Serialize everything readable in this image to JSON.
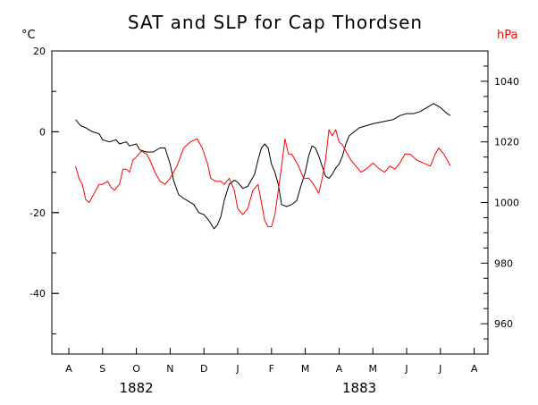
{
  "chart_data": {
    "type": "line",
    "title": "SAT and SLP for Cap Thordsen",
    "left_axis": {
      "unit": "°C",
      "ylim": [
        -55,
        20
      ],
      "ticks": [
        20,
        0,
        -20,
        -40
      ]
    },
    "right_axis": {
      "unit": "hPa",
      "ylim": [
        950,
        1050
      ],
      "ticks": [
        1040,
        1020,
        1000,
        980,
        960
      ]
    },
    "x_months": [
      "A",
      "S",
      "O",
      "N",
      "D",
      "J",
      "F",
      "M",
      "A",
      "M",
      "J",
      "J",
      "A"
    ],
    "years": [
      {
        "label": "1882",
        "month_index": 2
      },
      {
        "label": "1883",
        "month_index": 8.6
      }
    ],
    "colors": {
      "sat": "#000000",
      "slp": "#ff0000",
      "right_axis_label": "#ff0000"
    },
    "series": [
      {
        "axis": "left",
        "color": "#000000",
        "points": [
          [
            0.2,
            3
          ],
          [
            0.35,
            1.5
          ],
          [
            0.5,
            1
          ],
          [
            0.7,
            0
          ],
          [
            0.9,
            -0.5
          ],
          [
            1.0,
            -2
          ],
          [
            1.2,
            -2.5
          ],
          [
            1.4,
            -2
          ],
          [
            1.5,
            -3
          ],
          [
            1.7,
            -2.5
          ],
          [
            1.8,
            -3.5
          ],
          [
            2.0,
            -3
          ],
          [
            2.1,
            -4.5
          ],
          [
            2.3,
            -5
          ],
          [
            2.5,
            -5
          ],
          [
            2.7,
            -4
          ],
          [
            2.85,
            -4
          ],
          [
            3.0,
            -8
          ],
          [
            3.1,
            -12
          ],
          [
            3.25,
            -15.5
          ],
          [
            3.4,
            -16.5
          ],
          [
            3.5,
            -17
          ],
          [
            3.7,
            -18
          ],
          [
            3.85,
            -20
          ],
          [
            4.0,
            -20.5
          ],
          [
            4.15,
            -22
          ],
          [
            4.3,
            -24
          ],
          [
            4.4,
            -23
          ],
          [
            4.5,
            -21
          ],
          [
            4.6,
            -17
          ],
          [
            4.75,
            -13
          ],
          [
            4.9,
            -12
          ],
          [
            5.0,
            -12.5
          ],
          [
            5.15,
            -14
          ],
          [
            5.3,
            -13.5
          ],
          [
            5.5,
            -10.5
          ],
          [
            5.6,
            -7
          ],
          [
            5.7,
            -4
          ],
          [
            5.8,
            -3
          ],
          [
            5.9,
            -4
          ],
          [
            6.0,
            -8
          ],
          [
            6.1,
            -10
          ],
          [
            6.2,
            -13
          ],
          [
            6.3,
            -18
          ],
          [
            6.45,
            -18.5
          ],
          [
            6.6,
            -18
          ],
          [
            6.75,
            -17
          ],
          [
            6.85,
            -14
          ],
          [
            7.0,
            -10
          ],
          [
            7.1,
            -6
          ],
          [
            7.2,
            -3.5
          ],
          [
            7.3,
            -4
          ],
          [
            7.4,
            -6
          ],
          [
            7.5,
            -8.5
          ],
          [
            7.6,
            -11
          ],
          [
            7.7,
            -11.5
          ],
          [
            7.8,
            -10.5
          ],
          [
            7.9,
            -9
          ],
          [
            8.0,
            -8
          ],
          [
            8.1,
            -6
          ],
          [
            8.2,
            -3
          ],
          [
            8.3,
            -1
          ],
          [
            8.45,
            0
          ],
          [
            8.6,
            1
          ],
          [
            8.8,
            1.5
          ],
          [
            9.0,
            2
          ],
          [
            9.3,
            2.5
          ],
          [
            9.6,
            3
          ],
          [
            9.8,
            4
          ],
          [
            10.0,
            4.5
          ],
          [
            10.2,
            4.5
          ],
          [
            10.4,
            5
          ],
          [
            10.6,
            6
          ],
          [
            10.8,
            7
          ],
          [
            11.0,
            6
          ],
          [
            11.2,
            4.5
          ],
          [
            11.3,
            4
          ]
        ]
      },
      {
        "axis": "right",
        "color": "#ff0000",
        "points": [
          [
            0.2,
            1012
          ],
          [
            0.3,
            1008
          ],
          [
            0.4,
            1006
          ],
          [
            0.5,
            1001
          ],
          [
            0.6,
            1000
          ],
          [
            0.7,
            1002
          ],
          [
            0.8,
            1004
          ],
          [
            0.9,
            1006
          ],
          [
            1.0,
            1006
          ],
          [
            1.15,
            1007
          ],
          [
            1.25,
            1005
          ],
          [
            1.35,
            1004
          ],
          [
            1.5,
            1006
          ],
          [
            1.6,
            1011
          ],
          [
            1.7,
            1011
          ],
          [
            1.8,
            1010
          ],
          [
            1.9,
            1014
          ],
          [
            2.0,
            1015
          ],
          [
            2.15,
            1017
          ],
          [
            2.3,
            1016
          ],
          [
            2.4,
            1014
          ],
          [
            2.55,
            1010
          ],
          [
            2.7,
            1007
          ],
          [
            2.85,
            1006
          ],
          [
            3.0,
            1008
          ],
          [
            3.2,
            1012
          ],
          [
            3.4,
            1018
          ],
          [
            3.6,
            1020
          ],
          [
            3.8,
            1021
          ],
          [
            3.95,
            1018
          ],
          [
            4.1,
            1013
          ],
          [
            4.2,
            1008
          ],
          [
            4.35,
            1007
          ],
          [
            4.5,
            1007
          ],
          [
            4.6,
            1006
          ],
          [
            4.75,
            1008
          ],
          [
            4.9,
            1004
          ],
          [
            5.0,
            998
          ],
          [
            5.15,
            996
          ],
          [
            5.3,
            998
          ],
          [
            5.45,
            1004
          ],
          [
            5.6,
            1006
          ],
          [
            5.7,
            1000
          ],
          [
            5.8,
            994
          ],
          [
            5.9,
            992
          ],
          [
            6.0,
            992
          ],
          [
            6.1,
            996
          ],
          [
            6.2,
            1004
          ],
          [
            6.3,
            1012
          ],
          [
            6.4,
            1021
          ],
          [
            6.5,
            1016
          ],
          [
            6.6,
            1016
          ],
          [
            6.7,
            1014
          ],
          [
            6.8,
            1012
          ],
          [
            6.95,
            1008
          ],
          [
            7.1,
            1008
          ],
          [
            7.25,
            1006
          ],
          [
            7.4,
            1003
          ],
          [
            7.5,
            1008
          ],
          [
            7.6,
            1014
          ],
          [
            7.7,
            1024
          ],
          [
            7.8,
            1022
          ],
          [
            7.9,
            1024
          ],
          [
            8.0,
            1020
          ],
          [
            8.1,
            1019
          ],
          [
            8.25,
            1016
          ],
          [
            8.35,
            1014
          ],
          [
            8.5,
            1012
          ],
          [
            8.65,
            1010
          ],
          [
            8.8,
            1011
          ],
          [
            9.0,
            1013
          ],
          [
            9.2,
            1011
          ],
          [
            9.35,
            1010
          ],
          [
            9.5,
            1012
          ],
          [
            9.65,
            1011
          ],
          [
            9.8,
            1013
          ],
          [
            9.95,
            1016
          ],
          [
            10.1,
            1016
          ],
          [
            10.3,
            1014
          ],
          [
            10.5,
            1013
          ],
          [
            10.7,
            1012
          ],
          [
            10.85,
            1016
          ],
          [
            10.95,
            1018
          ],
          [
            11.1,
            1016
          ],
          [
            11.2,
            1014
          ],
          [
            11.3,
            1012
          ]
        ]
      }
    ]
  }
}
